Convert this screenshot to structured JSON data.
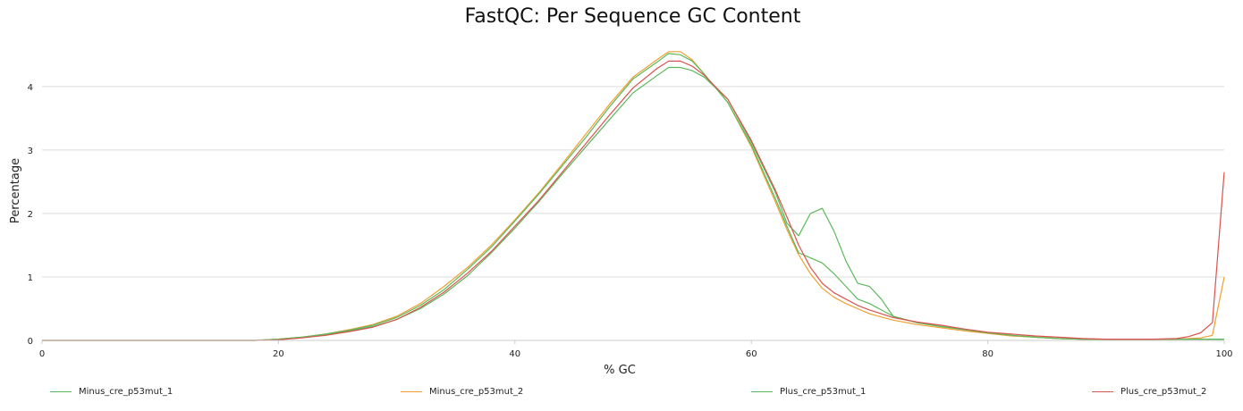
{
  "chart_data": {
    "type": "line",
    "title": "FastQC: Per Sequence GC Content",
    "xlabel": "% GC",
    "ylabel": "Percentage",
    "xlim": [
      0,
      100
    ],
    "ylim": [
      0,
      4.8
    ],
    "xticks": [
      "0",
      "20",
      "40",
      "60",
      "80",
      "100"
    ],
    "yticks": [
      "0",
      "1",
      "2",
      "3",
      "4"
    ],
    "grid": "horizontal",
    "legend_position": "bottom",
    "series": [
      {
        "name": "Minus_cre_p53mut_1",
        "color": "#5cb85c",
        "points": [
          [
            0,
            0
          ],
          [
            18,
            0
          ],
          [
            20,
            0.02
          ],
          [
            22,
            0.05
          ],
          [
            24,
            0.09
          ],
          [
            26,
            0.15
          ],
          [
            28,
            0.22
          ],
          [
            30,
            0.33
          ],
          [
            32,
            0.5
          ],
          [
            34,
            0.73
          ],
          [
            36,
            1.02
          ],
          [
            38,
            1.38
          ],
          [
            40,
            1.77
          ],
          [
            42,
            2.18
          ],
          [
            44,
            2.62
          ],
          [
            46,
            3.05
          ],
          [
            48,
            3.48
          ],
          [
            50,
            3.9
          ],
          [
            52,
            4.17
          ],
          [
            53,
            4.3
          ],
          [
            54,
            4.3
          ],
          [
            55,
            4.25
          ],
          [
            56,
            4.15
          ],
          [
            58,
            3.8
          ],
          [
            60,
            3.12
          ],
          [
            62,
            2.35
          ],
          [
            63,
            1.85
          ],
          [
            64,
            1.65
          ],
          [
            65,
            2.0
          ],
          [
            66,
            2.08
          ],
          [
            67,
            1.72
          ],
          [
            68,
            1.25
          ],
          [
            69,
            0.9
          ],
          [
            70,
            0.85
          ],
          [
            71,
            0.65
          ],
          [
            72,
            0.38
          ],
          [
            74,
            0.28
          ],
          [
            76,
            0.22
          ],
          [
            78,
            0.17
          ],
          [
            80,
            0.12
          ],
          [
            82,
            0.08
          ],
          [
            84,
            0.05
          ],
          [
            86,
            0.03
          ],
          [
            88,
            0.02
          ],
          [
            90,
            0.02
          ],
          [
            95,
            0.02
          ],
          [
            100,
            0.02
          ]
        ]
      },
      {
        "name": "Minus_cre_p53mut_2",
        "color": "#f0a030",
        "points": [
          [
            0,
            0
          ],
          [
            18,
            0
          ],
          [
            20,
            0.02
          ],
          [
            22,
            0.05
          ],
          [
            24,
            0.1
          ],
          [
            26,
            0.17
          ],
          [
            28,
            0.25
          ],
          [
            30,
            0.38
          ],
          [
            32,
            0.58
          ],
          [
            34,
            0.85
          ],
          [
            36,
            1.15
          ],
          [
            38,
            1.5
          ],
          [
            40,
            1.9
          ],
          [
            42,
            2.32
          ],
          [
            44,
            2.78
          ],
          [
            46,
            3.25
          ],
          [
            48,
            3.72
          ],
          [
            50,
            4.15
          ],
          [
            52,
            4.42
          ],
          [
            53,
            4.55
          ],
          [
            54,
            4.55
          ],
          [
            55,
            4.42
          ],
          [
            56,
            4.2
          ],
          [
            58,
            3.75
          ],
          [
            60,
            3.05
          ],
          [
            62,
            2.2
          ],
          [
            63,
            1.75
          ],
          [
            64,
            1.35
          ],
          [
            65,
            1.05
          ],
          [
            66,
            0.82
          ],
          [
            67,
            0.68
          ],
          [
            68,
            0.58
          ],
          [
            69,
            0.5
          ],
          [
            70,
            0.42
          ],
          [
            72,
            0.32
          ],
          [
            74,
            0.25
          ],
          [
            76,
            0.2
          ],
          [
            78,
            0.15
          ],
          [
            80,
            0.11
          ],
          [
            82,
            0.07
          ],
          [
            84,
            0.05
          ],
          [
            86,
            0.03
          ],
          [
            88,
            0.02
          ],
          [
            90,
            0.02
          ],
          [
            96,
            0.02
          ],
          [
            98,
            0.04
          ],
          [
            99,
            0.08
          ],
          [
            100,
            1.0
          ]
        ]
      },
      {
        "name": "Plus_cre_p53mut_1",
        "color": "#5cb85c",
        "points": [
          [
            0,
            0
          ],
          [
            18,
            0
          ],
          [
            20,
            0.02
          ],
          [
            22,
            0.05
          ],
          [
            24,
            0.1
          ],
          [
            26,
            0.16
          ],
          [
            28,
            0.24
          ],
          [
            30,
            0.36
          ],
          [
            32,
            0.55
          ],
          [
            34,
            0.8
          ],
          [
            36,
            1.12
          ],
          [
            38,
            1.47
          ],
          [
            40,
            1.88
          ],
          [
            42,
            2.3
          ],
          [
            44,
            2.75
          ],
          [
            46,
            3.2
          ],
          [
            48,
            3.68
          ],
          [
            50,
            4.12
          ],
          [
            52,
            4.38
          ],
          [
            53,
            4.52
          ],
          [
            54,
            4.5
          ],
          [
            55,
            4.4
          ],
          [
            56,
            4.2
          ],
          [
            58,
            3.75
          ],
          [
            60,
            3.08
          ],
          [
            62,
            2.25
          ],
          [
            63,
            1.8
          ],
          [
            64,
            1.38
          ],
          [
            65,
            1.3
          ],
          [
            66,
            1.22
          ],
          [
            67,
            1.05
          ],
          [
            68,
            0.85
          ],
          [
            69,
            0.65
          ],
          [
            70,
            0.58
          ],
          [
            71,
            0.48
          ],
          [
            72,
            0.38
          ],
          [
            74,
            0.28
          ],
          [
            76,
            0.22
          ],
          [
            78,
            0.17
          ],
          [
            80,
            0.12
          ],
          [
            82,
            0.08
          ],
          [
            84,
            0.05
          ],
          [
            86,
            0.03
          ],
          [
            88,
            0.02
          ],
          [
            90,
            0.02
          ],
          [
            95,
            0.02
          ],
          [
            100,
            0.02
          ]
        ]
      },
      {
        "name": "Plus_cre_p53mut_2",
        "color": "#d9534f",
        "points": [
          [
            0,
            0
          ],
          [
            18,
            0
          ],
          [
            20,
            0.01
          ],
          [
            22,
            0.04
          ],
          [
            24,
            0.08
          ],
          [
            26,
            0.14
          ],
          [
            28,
            0.21
          ],
          [
            30,
            0.33
          ],
          [
            32,
            0.52
          ],
          [
            34,
            0.76
          ],
          [
            36,
            1.06
          ],
          [
            38,
            1.4
          ],
          [
            40,
            1.8
          ],
          [
            42,
            2.2
          ],
          [
            44,
            2.65
          ],
          [
            46,
            3.1
          ],
          [
            48,
            3.55
          ],
          [
            50,
            3.98
          ],
          [
            52,
            4.28
          ],
          [
            53,
            4.4
          ],
          [
            54,
            4.4
          ],
          [
            55,
            4.32
          ],
          [
            56,
            4.18
          ],
          [
            58,
            3.8
          ],
          [
            60,
            3.15
          ],
          [
            62,
            2.38
          ],
          [
            63,
            1.95
          ],
          [
            64,
            1.5
          ],
          [
            65,
            1.15
          ],
          [
            66,
            0.9
          ],
          [
            67,
            0.75
          ],
          [
            68,
            0.65
          ],
          [
            69,
            0.55
          ],
          [
            70,
            0.48
          ],
          [
            72,
            0.36
          ],
          [
            74,
            0.29
          ],
          [
            76,
            0.24
          ],
          [
            78,
            0.18
          ],
          [
            80,
            0.13
          ],
          [
            82,
            0.1
          ],
          [
            84,
            0.07
          ],
          [
            86,
            0.05
          ],
          [
            88,
            0.03
          ],
          [
            90,
            0.02
          ],
          [
            94,
            0.02
          ],
          [
            96,
            0.03
          ],
          [
            97,
            0.06
          ],
          [
            98,
            0.12
          ],
          [
            99,
            0.28
          ],
          [
            100,
            2.65
          ]
        ]
      }
    ]
  }
}
